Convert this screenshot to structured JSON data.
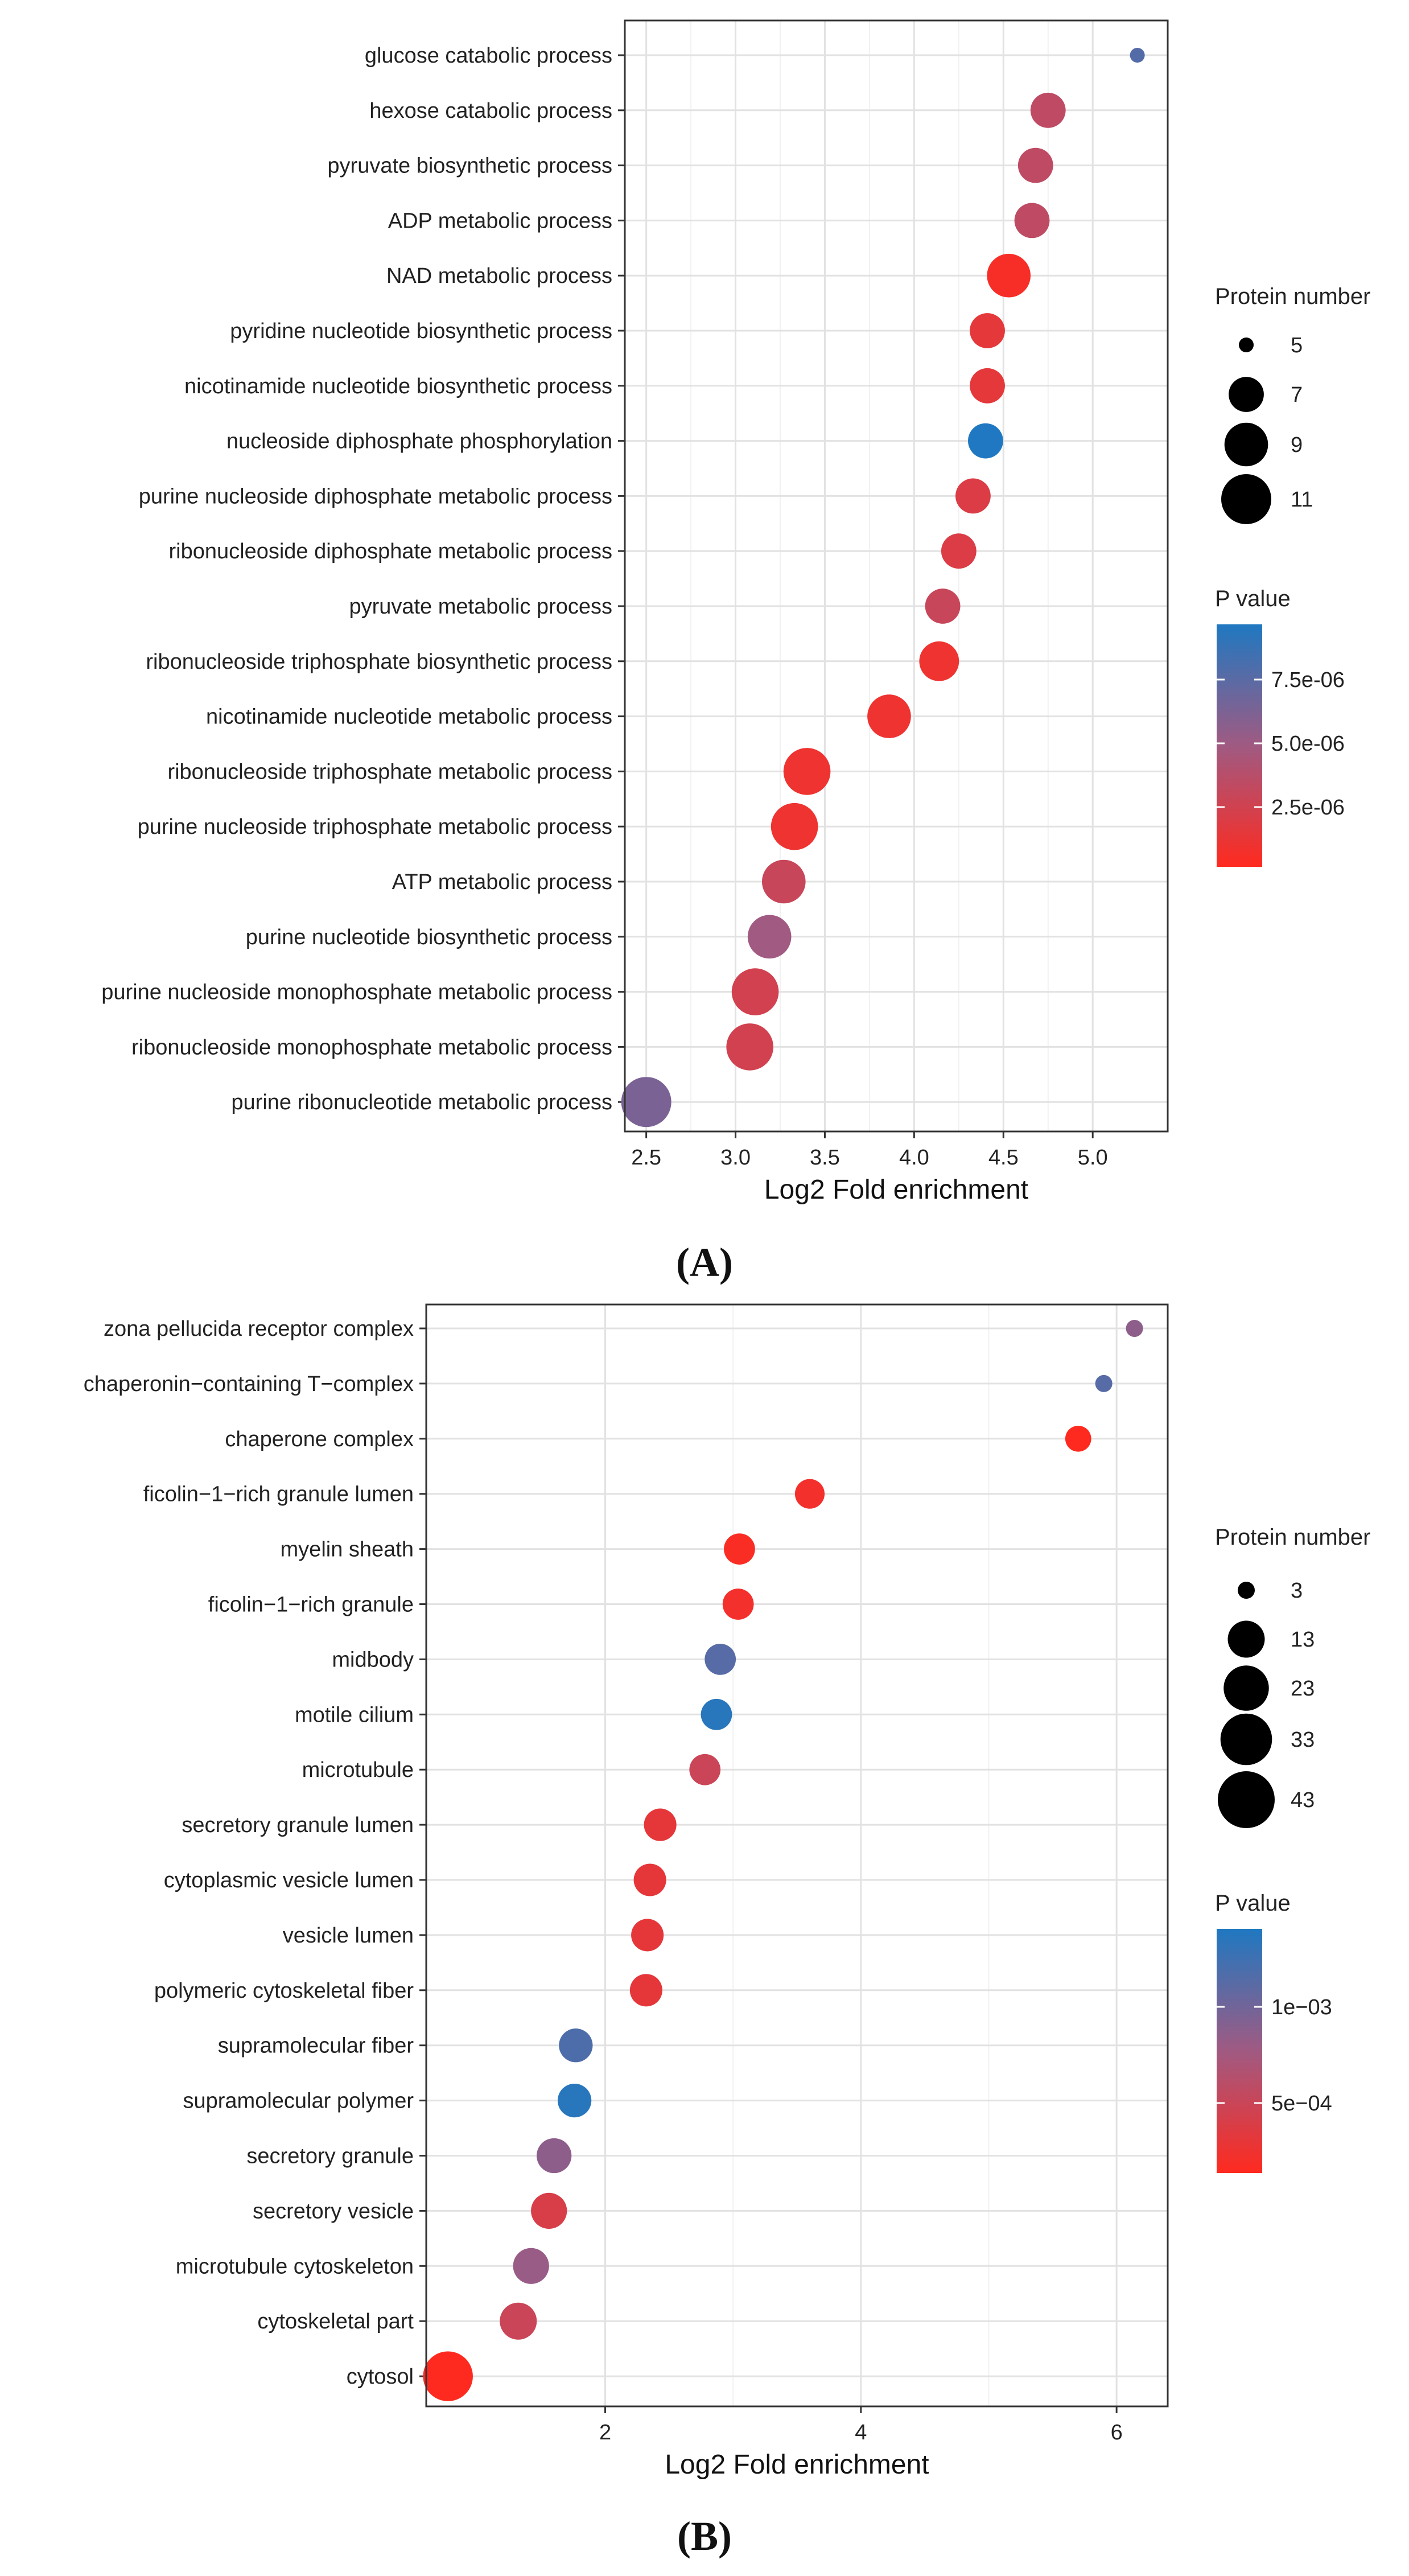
{
  "chart_data": [
    {
      "type": "scatter",
      "panel_label": "(A)",
      "xlabel": "Log2 Fold enrichment",
      "xlim": [
        2.38,
        5.42
      ],
      "xticks": [
        2.5,
        3.0,
        3.5,
        4.0,
        4.5,
        5.0
      ],
      "xtick_labels": [
        "2.5",
        "3.0",
        "3.5",
        "4.0",
        "4.5",
        "5.0"
      ],
      "categories": [
        "glucose catabolic process",
        "hexose catabolic process",
        "pyruvate biosynthetic process",
        "ADP metabolic process",
        "NAD metabolic process",
        "pyridine nucleotide biosynthetic process",
        "nicotinamide nucleotide biosynthetic process",
        "nucleoside diphosphate phosphorylation",
        "purine nucleoside diphosphate metabolic process",
        "ribonucleoside diphosphate metabolic process",
        "pyruvate metabolic process",
        "ribonucleoside triphosphate biosynthetic process",
        "nicotinamide nucleotide metabolic process",
        "ribonucleoside triphosphate metabolic process",
        "purine nucleoside triphosphate metabolic process",
        "ATP metabolic process",
        "purine nucleotide biosynthetic process",
        "purine nucleoside monophosphate metabolic process",
        "ribonucleoside monophosphate metabolic process",
        "purine ribonucleotide metabolic process"
      ],
      "x": [
        5.25,
        4.75,
        4.68,
        4.66,
        4.53,
        4.41,
        4.41,
        4.4,
        4.33,
        4.25,
        4.16,
        4.14,
        3.86,
        3.4,
        3.33,
        3.27,
        3.19,
        3.11,
        3.08,
        2.5
      ],
      "protein_number": [
        5,
        7,
        7,
        7,
        9,
        7,
        7,
        7,
        7,
        7,
        7,
        8,
        9,
        10,
        10,
        9,
        9,
        10,
        10,
        11
      ],
      "p_value": [
        8e-06,
        3.5e-06,
        3.5e-06,
        3.5e-06,
        5e-07,
        1.5e-06,
        1.5e-06,
        1e-05,
        2e-06,
        2e-06,
        3e-06,
        1e-06,
        1e-06,
        1e-06,
        1e-06,
        3e-06,
        5e-06,
        2.5e-06,
        2.5e-06,
        6.5e-06
      ],
      "size_legend": {
        "title": "Protein number",
        "values": [
          5,
          7,
          9,
          11
        ],
        "labels": [
          "5",
          "7",
          "9",
          "11"
        ]
      },
      "color_legend": {
        "title": "P value",
        "range": [
          1e-07,
          1e-05
        ],
        "breaks": [
          7.5e-06,
          5e-06,
          2.5e-06
        ],
        "labels": [
          "7.5e-06",
          "5.0e-06",
          "2.5e-06"
        ]
      },
      "colors": {
        "low": "#ff2a1f",
        "mid": "#a05a82",
        "high": "#1f78c1"
      },
      "grid": true
    },
    {
      "type": "scatter",
      "panel_label": "(B)",
      "xlabel": "Log2 Fold enrichment",
      "xlim": [
        0.6,
        6.4
      ],
      "xticks": [
        2,
        4,
        6
      ],
      "xtick_labels": [
        "2",
        "4",
        "6"
      ],
      "categories": [
        "zona pellucida receptor complex",
        "chaperonin−containing T−complex",
        "chaperone complex",
        "ficolin−1−rich granule lumen",
        "myelin sheath",
        "ficolin−1−rich granule",
        "midbody",
        "motile cilium",
        "microtubule",
        "secretory granule lumen",
        "cytoplasmic vesicle lumen",
        "vesicle lumen",
        "polymeric cytoskeletal fiber",
        "supramolecular fiber",
        "supramolecular polymer",
        "secretory granule",
        "secretory vesicle",
        "microtubule cytoskeleton",
        "cytoskeletal part",
        "cytosol"
      ],
      "x": [
        6.14,
        5.9,
        5.7,
        3.6,
        3.05,
        3.04,
        2.9,
        2.87,
        2.78,
        2.43,
        2.35,
        2.33,
        2.32,
        1.77,
        1.76,
        1.6,
        1.56,
        1.42,
        1.32,
        0.77
      ],
      "protein_number": [
        3,
        3,
        5,
        7,
        8,
        8,
        8,
        8,
        8,
        9,
        9,
        9,
        9,
        10,
        10,
        11,
        12,
        12,
        13,
        30
      ],
      "p_value": [
        0.0008,
        0.0011,
        1e-05,
        0.0001,
        5e-05,
        0.0001,
        0.0011,
        0.00135,
        0.0004,
        0.0002,
        0.0002,
        0.0002,
        0.0002,
        0.00115,
        0.00135,
        0.0008,
        0.0003,
        0.00075,
        0.0004,
        1e-05
      ],
      "size_legend": {
        "title": "Protein number",
        "values": [
          3,
          13,
          23,
          33,
          43
        ],
        "labels": [
          "3",
          "13",
          "23",
          "33",
          "43"
        ]
      },
      "color_legend": {
        "title": "P value",
        "range": [
          1e-05,
          0.0014
        ],
        "breaks": [
          0.001,
          0.0005
        ],
        "labels": [
          "1e−03",
          "5e−04"
        ]
      },
      "colors": {
        "low": "#ff2a1f",
        "mid": "#a05a82",
        "high": "#1f78c1"
      },
      "grid": true
    }
  ]
}
